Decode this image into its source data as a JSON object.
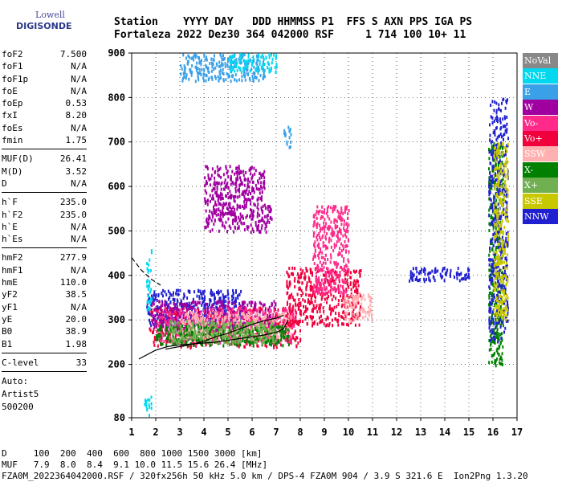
{
  "logo": {
    "line1": "Lowell",
    "line2": "DIGISONDE"
  },
  "header": {
    "labels": "Station    YYYY DAY   DDD HHMMSS P1  FFS S AXN PPS IGA PS",
    "values": "Fortaleza 2022 Dez30 364 042000 RSF     1 714 100 10+ 11"
  },
  "params": [
    {
      "group": [
        [
          "foF2",
          "7.500"
        ],
        [
          "foF1",
          "N/A"
        ],
        [
          "foF1p",
          "N/A"
        ],
        [
          "foE",
          "N/A"
        ],
        [
          "foEp",
          "0.53"
        ],
        [
          "fxI",
          "8.20"
        ],
        [
          "foEs",
          "N/A"
        ],
        [
          "fmin",
          "1.75"
        ]
      ]
    },
    {
      "group": [
        [
          "MUF(D)",
          "26.41"
        ],
        [
          "M(D)",
          "3.52"
        ],
        [
          "D",
          "N/A"
        ]
      ]
    },
    {
      "group": [
        [
          "h`F",
          "235.0"
        ],
        [
          "h`F2",
          "235.0"
        ],
        [
          "h`E",
          "N/A"
        ],
        [
          "h`Es",
          "N/A"
        ]
      ]
    },
    {
      "group": [
        [
          "hmF2",
          "277.9"
        ],
        [
          "hmF1",
          "N/A"
        ],
        [
          "hmE",
          "110.0"
        ],
        [
          "yF2",
          "38.5"
        ],
        [
          "yF1",
          "N/A"
        ],
        [
          "yE",
          "20.0"
        ],
        [
          "B0",
          "38.9"
        ],
        [
          "B1",
          "1.98"
        ]
      ]
    },
    {
      "group": [
        [
          "C-level",
          "33"
        ]
      ]
    }
  ],
  "auto": {
    "l1": "Auto:",
    "l2": "Artist5",
    "l3": "500200"
  },
  "legend": [
    {
      "label": "NoVal",
      "color": "#888888"
    },
    {
      "label": "NNE",
      "color": "#00d8f0"
    },
    {
      "label": "E",
      "color": "#3aa0e8"
    },
    {
      "label": "W",
      "color": "#a000a0"
    },
    {
      "label": "Vo-",
      "color": "#ff2a8a"
    },
    {
      "label": "Vo+",
      "color": "#f0003c"
    },
    {
      "label": "SSW",
      "color": "#ffb0b0"
    },
    {
      "label": "X-",
      "color": "#008000"
    },
    {
      "label": "X+",
      "color": "#70b050"
    },
    {
      "label": "SSE",
      "color": "#c8c800"
    },
    {
      "label": "NNW",
      "color": "#2020d0"
    }
  ],
  "footer": {
    "l1": "D     100  200  400  600  800 1000 1500 3000 [km]",
    "l2": "MUF   7.9  8.0  8.4  9.1 10.0 11.5 15.6 26.4 [MHz]",
    "l3": "FZA0M_2022364042000.RSF / 320fx256h 50 kHz 5.0 km / DPS-4 FZA0M 904 / 3.9 S 321.6 E  Ion2Png 1.3.20"
  },
  "chart_data": {
    "type": "scatter",
    "title": "",
    "xlabel": "",
    "ylabel": "",
    "xlim": [
      1,
      17
    ],
    "ylim": [
      80,
      900
    ],
    "x_ticks": [
      1,
      2,
      3,
      4,
      5,
      6,
      7,
      8,
      9,
      10,
      11,
      12,
      13,
      14,
      15,
      16,
      17
    ],
    "y_ticks": [
      80,
      200,
      300,
      400,
      500,
      600,
      700,
      800,
      900
    ],
    "grid": true,
    "legend_position": "right",
    "traces": [
      {
        "name": "",
        "style": "solid",
        "x": [
          1.3,
          2,
          2.5,
          3,
          3.5,
          4,
          4.5,
          5,
          5.5,
          6,
          6.5,
          7,
          7.3,
          7.5
        ],
        "y": [
          212,
          232,
          240,
          244,
          246,
          248,
          250,
          254,
          258,
          262,
          266,
          272,
          280,
          300
        ]
      },
      {
        "name": "",
        "style": "solid",
        "x": [
          2.4,
          3,
          3.5,
          4,
          4.5,
          5,
          5.5,
          6,
          6.5,
          7,
          7.3
        ],
        "y": [
          234,
          240,
          245,
          252,
          262,
          270,
          280,
          290,
          298,
          304,
          310
        ]
      },
      {
        "name": "",
        "style": "dashed",
        "x": [
          1,
          1.4,
          1.8,
          2.2
        ],
        "y": [
          440,
          412,
          392,
          378
        ]
      }
    ],
    "clusters": [
      {
        "color": "#2020d0",
        "x": [
          1.6,
          5.6
        ],
        "y": [
          290,
          370
        ]
      },
      {
        "color": "#f0003c",
        "x": [
          1.7,
          8
        ],
        "y": [
          240,
          330
        ]
      },
      {
        "color": "#a000a0",
        "x": [
          1.8,
          7
        ],
        "y": [
          280,
          345
        ]
      },
      {
        "color": "#ff2a8a",
        "x": [
          2,
          7.8
        ],
        "y": [
          250,
          330
        ]
      },
      {
        "color": "#ffb0b0",
        "x": [
          3,
          7.6
        ],
        "y": [
          260,
          320
        ]
      },
      {
        "color": "#008000",
        "x": [
          2,
          7.5
        ],
        "y": [
          245,
          290
        ]
      },
      {
        "color": "#70b050",
        "x": [
          2.5,
          7
        ],
        "y": [
          250,
          300
        ]
      },
      {
        "color": "#f0003c",
        "x": [
          7.4,
          10.5
        ],
        "y": [
          290,
          420
        ]
      },
      {
        "color": "#ff2a8a",
        "x": [
          8.5,
          10
        ],
        "y": [
          360,
          560
        ]
      },
      {
        "color": "#ffb0b0",
        "x": [
          9.8,
          11
        ],
        "y": [
          300,
          360
        ]
      },
      {
        "color": "#a000a0",
        "x": [
          4,
          6.8
        ],
        "y": [
          500,
          560
        ]
      },
      {
        "color": "#a000a0",
        "x": [
          4,
          6.5
        ],
        "y": [
          560,
          650
        ]
      },
      {
        "color": "#3aa0e8",
        "x": [
          3,
          6.5
        ],
        "y": [
          840,
          900
        ]
      },
      {
        "color": "#00d8f0",
        "x": [
          5,
          7
        ],
        "y": [
          860,
          900
        ]
      },
      {
        "color": "#2020d0",
        "x": [
          12.5,
          15
        ],
        "y": [
          390,
          420
        ]
      },
      {
        "color": "#008000",
        "x": [
          15.8,
          16.4
        ],
        "y": [
          200,
          700
        ]
      },
      {
        "color": "#2020d0",
        "x": [
          15.8,
          16.6
        ],
        "y": [
          250,
          800
        ]
      },
      {
        "color": "#c8c800",
        "x": [
          16,
          16.6
        ],
        "y": [
          300,
          700
        ]
      },
      {
        "color": "#00d8f0",
        "x": [
          1.5,
          1.8
        ],
        "y": [
          80,
          130
        ]
      },
      {
        "color": "#00d8f0",
        "x": [
          1.6,
          1.8
        ],
        "y": [
          320,
          460
        ]
      },
      {
        "color": "#3aa0e8",
        "x": [
          7.3,
          7.6
        ],
        "y": [
          690,
          740
        ]
      }
    ]
  }
}
